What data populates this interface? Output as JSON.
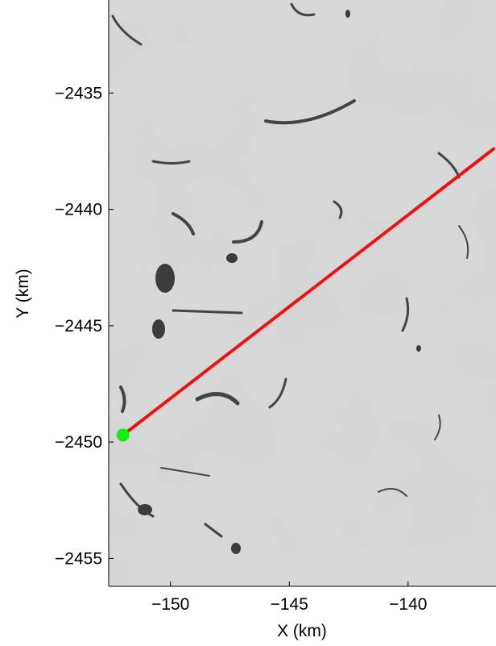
{
  "chart_data": {
    "type": "line",
    "title": "",
    "xlabel": "X (km)",
    "ylabel": "Y (km)",
    "xlim": [
      -152.6,
      -136.3
    ],
    "ylim": [
      -2456.2,
      -2431.0
    ],
    "xticks": [
      -150,
      -145,
      -140
    ],
    "yticks": [
      -2435,
      -2440,
      -2445,
      -2450,
      -2455
    ],
    "xtick_labels": [
      "−150",
      "−145",
      "−140"
    ],
    "ytick_labels": [
      "−2435",
      "−2440",
      "−2445",
      "−2450",
      "−2455"
    ],
    "grid": false,
    "background": "grayscale satellite image",
    "series": [
      {
        "x": [
          -152.0,
          -136.4
        ],
        "y": [
          -2449.7,
          -2437.4
        ],
        "color": "#ee1111"
      }
    ],
    "markers": [
      {
        "x": -152.0,
        "y": -2449.7,
        "color": "#11ee11"
      }
    ]
  }
}
